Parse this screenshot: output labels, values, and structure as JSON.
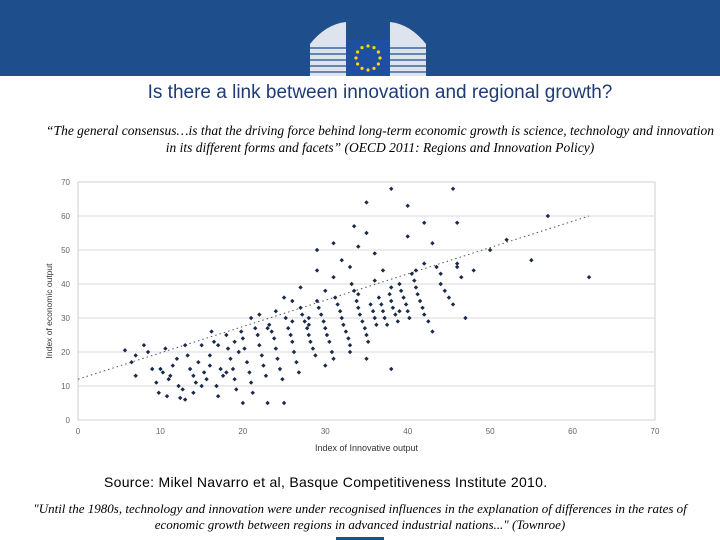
{
  "header": {
    "logo_icon": "eu-commission-logo-icon"
  },
  "slide": {
    "title": "Is there a link between innovation and regional growth?",
    "quote": "“The general consensus…is that the driving force behind long-term economic growth is science, technology and innovation in its different forms and facets” (OECD 2011: Regions and Innovation Policy)",
    "source": "Source: Mikel Navarro et al, Basque Competitiveness Institute 2010.",
    "footer_quote": "\"Until the 1980s, technology and innovation were under recognised influences in the explanation of differences in the rates of economic growth between regions in advanced industrial nations...\" (Townroe)"
  },
  "colors": {
    "header": "#1f4e8c",
    "title": "#1f3b73",
    "points": "#1a2a4a"
  },
  "chart_data": {
    "type": "scatter",
    "xlabel": "Index of Innovative output",
    "ylabel": "Index of economic output",
    "xlim": [
      0,
      70
    ],
    "ylim": [
      0,
      70
    ],
    "xticks": [
      "0",
      "10",
      "20",
      "30",
      "40",
      "50",
      "60",
      "70"
    ],
    "yticks": [
      "0",
      "10",
      "20",
      "30",
      "40",
      "50",
      "60",
      "70"
    ],
    "grid": "horizontal",
    "trendline": {
      "x": [
        0,
        62
      ],
      "y": [
        12,
        60
      ]
    },
    "points": [
      [
        5.7,
        20.5
      ],
      [
        6.5,
        17
      ],
      [
        7,
        13
      ],
      [
        8,
        22
      ],
      [
        8.5,
        20
      ],
      [
        9.5,
        11
      ],
      [
        9.8,
        8
      ],
      [
        10,
        15
      ],
      [
        10.3,
        14
      ],
      [
        10.6,
        21
      ],
      [
        10.8,
        7
      ],
      [
        11.2,
        13
      ],
      [
        11.5,
        16
      ],
      [
        12,
        18
      ],
      [
        12.2,
        10
      ],
      [
        12.4,
        6.5
      ],
      [
        12.7,
        9
      ],
      [
        13,
        22
      ],
      [
        13.3,
        19
      ],
      [
        13.6,
        15
      ],
      [
        14,
        13
      ],
      [
        14.3,
        11
      ],
      [
        14.6,
        17
      ],
      [
        15,
        22
      ],
      [
        15.3,
        14
      ],
      [
        15.6,
        12
      ],
      [
        16,
        19
      ],
      [
        16.2,
        26
      ],
      [
        16.5,
        23
      ],
      [
        16.8,
        10
      ],
      [
        17,
        7
      ],
      [
        17.3,
        15
      ],
      [
        17.6,
        13
      ],
      [
        18,
        25
      ],
      [
        18.2,
        21
      ],
      [
        18.5,
        18
      ],
      [
        18.8,
        15
      ],
      [
        19,
        12
      ],
      [
        19.2,
        9
      ],
      [
        19.5,
        20
      ],
      [
        19.8,
        26
      ],
      [
        20,
        24
      ],
      [
        20.2,
        21
      ],
      [
        20.5,
        17
      ],
      [
        20.8,
        14
      ],
      [
        21,
        11
      ],
      [
        21.2,
        8
      ],
      [
        21.5,
        27
      ],
      [
        21.8,
        25
      ],
      [
        22,
        22
      ],
      [
        22.3,
        19
      ],
      [
        22.5,
        16
      ],
      [
        22.8,
        13
      ],
      [
        23,
        5
      ],
      [
        23.2,
        28
      ],
      [
        23.5,
        26
      ],
      [
        23.8,
        24
      ],
      [
        24,
        21
      ],
      [
        24.2,
        18
      ],
      [
        24.5,
        15
      ],
      [
        24.8,
        12
      ],
      [
        25,
        5
      ],
      [
        25.2,
        30
      ],
      [
        25.5,
        27
      ],
      [
        25.8,
        25
      ],
      [
        26,
        23
      ],
      [
        26.2,
        20
      ],
      [
        26.5,
        17
      ],
      [
        26.8,
        14
      ],
      [
        27,
        33
      ],
      [
        27.2,
        31
      ],
      [
        27.5,
        29
      ],
      [
        27.8,
        27
      ],
      [
        28,
        25
      ],
      [
        28.2,
        23
      ],
      [
        28.5,
        21
      ],
      [
        28.8,
        19
      ],
      [
        29,
        35
      ],
      [
        29.2,
        33
      ],
      [
        29.5,
        31
      ],
      [
        29.8,
        29
      ],
      [
        30,
        27
      ],
      [
        30.2,
        25
      ],
      [
        30.5,
        23
      ],
      [
        30.8,
        20
      ],
      [
        31,
        18
      ],
      [
        31.2,
        36
      ],
      [
        31.5,
        34
      ],
      [
        31.8,
        32
      ],
      [
        32,
        30
      ],
      [
        32.2,
        28
      ],
      [
        32.5,
        26
      ],
      [
        32.8,
        24
      ],
      [
        33,
        22
      ],
      [
        33.2,
        40
      ],
      [
        33.5,
        38
      ],
      [
        33.8,
        35
      ],
      [
        34,
        33
      ],
      [
        34.2,
        31
      ],
      [
        34.5,
        29
      ],
      [
        34.8,
        27
      ],
      [
        35,
        25
      ],
      [
        35.2,
        23
      ],
      [
        35.5,
        34
      ],
      [
        35.8,
        32
      ],
      [
        36,
        30
      ],
      [
        36.2,
        28
      ],
      [
        36.5,
        36
      ],
      [
        36.8,
        34
      ],
      [
        37,
        32
      ],
      [
        37.2,
        30
      ],
      [
        37.5,
        28
      ],
      [
        37.8,
        37
      ],
      [
        38,
        35
      ],
      [
        38.2,
        33
      ],
      [
        38.5,
        31
      ],
      [
        38.8,
        29
      ],
      [
        39,
        40
      ],
      [
        39.2,
        38
      ],
      [
        39.5,
        36
      ],
      [
        39.8,
        34
      ],
      [
        40,
        32
      ],
      [
        40.2,
        30
      ],
      [
        40.5,
        43
      ],
      [
        40.8,
        41
      ],
      [
        41,
        39
      ],
      [
        41.2,
        37
      ],
      [
        41.5,
        35
      ],
      [
        41.8,
        33
      ],
      [
        42,
        31
      ],
      [
        42.5,
        29
      ],
      [
        43,
        26
      ],
      [
        43.5,
        45
      ],
      [
        44,
        40
      ],
      [
        44.5,
        38
      ],
      [
        45,
        36
      ],
      [
        45.5,
        34
      ],
      [
        46,
        45
      ],
      [
        46.5,
        42
      ],
      [
        47,
        30
      ],
      [
        24,
        32
      ],
      [
        26,
        35
      ],
      [
        28,
        30
      ],
      [
        30,
        38
      ],
      [
        31,
        42
      ],
      [
        32,
        47
      ],
      [
        33,
        45
      ],
      [
        34,
        51
      ],
      [
        35,
        55
      ],
      [
        36,
        49
      ],
      [
        37,
        44
      ],
      [
        30,
        16
      ],
      [
        33,
        20
      ],
      [
        35,
        18
      ],
      [
        38,
        15
      ],
      [
        29,
        50
      ],
      [
        31,
        52
      ],
      [
        33.5,
        57
      ],
      [
        35,
        64
      ],
      [
        38,
        68
      ],
      [
        40,
        63
      ],
      [
        42,
        58
      ],
      [
        45.5,
        68
      ],
      [
        46,
        58
      ],
      [
        40,
        54
      ],
      [
        43,
        52
      ],
      [
        46,
        46
      ],
      [
        48,
        44
      ],
      [
        50,
        50
      ],
      [
        52,
        53
      ],
      [
        55,
        47
      ],
      [
        57,
        60
      ],
      [
        62,
        42
      ],
      [
        27,
        39
      ],
      [
        29,
        44
      ],
      [
        25,
        36
      ],
      [
        22,
        31
      ],
      [
        21,
        30
      ],
      [
        23,
        27
      ],
      [
        26,
        29
      ],
      [
        28,
        28
      ],
      [
        34,
        37
      ],
      [
        36,
        41
      ],
      [
        38,
        39
      ],
      [
        39,
        32
      ],
      [
        41,
        44
      ],
      [
        42,
        46
      ],
      [
        44,
        43
      ],
      [
        18,
        14
      ],
      [
        14,
        8
      ],
      [
        13,
        6
      ],
      [
        11,
        12
      ],
      [
        9,
        15
      ],
      [
        7,
        19
      ],
      [
        16,
        16
      ],
      [
        15,
        10
      ],
      [
        17,
        22
      ],
      [
        19,
        23
      ],
      [
        20,
        5
      ]
    ]
  }
}
